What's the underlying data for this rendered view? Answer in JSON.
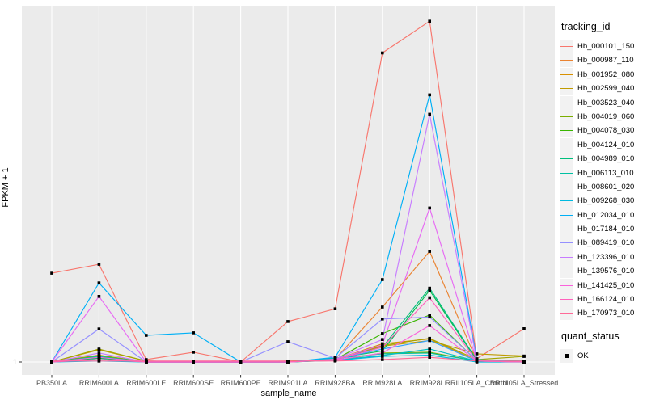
{
  "chart_data": {
    "type": "line",
    "xlabel": "sample_name",
    "ylabel": "FPKM + 1",
    "y_scale": "log10",
    "y_tick_labels": [
      "1"
    ],
    "legend_title": "tracking_id",
    "quant_legend": {
      "title": "quant_status",
      "items": [
        {
          "label": "OK",
          "shape": "square",
          "color": "#000000"
        }
      ]
    },
    "panel_bg": "#EBEBEB",
    "grid_color": "#FFFFFF",
    "tick_color": "#333333",
    "tick_label_color": "#4D4D4D",
    "point_color": "#000000",
    "categories": [
      "PB350LA",
      "RRIM600LA",
      "RRIM600LE",
      "RRIM600SE",
      "RRIM600PE",
      "RRIM901LA",
      "RRIM928BA",
      "RRIM928LA",
      "RRIM928LE",
      "RRII105LA_Control",
      "RRII105LA_Stressed"
    ],
    "series": [
      {
        "name": "Hb_000101_150",
        "color": "#F8766D",
        "values": [
          6.1,
          7.3,
          1.05,
          1.22,
          1.0,
          2.28,
          2.95,
          540,
          1030,
          1.07,
          1.97
        ]
      },
      {
        "name": "Hb_000987_110",
        "color": "#EA8331",
        "values": [
          1.0,
          1.1,
          1.0,
          1.0,
          1.0,
          1.0,
          1.06,
          3.06,
          9.5,
          1.02,
          1.0
        ]
      },
      {
        "name": "Hb_001952_080",
        "color": "#D89000",
        "values": [
          1.0,
          1.15,
          1.0,
          1.0,
          1.0,
          1.0,
          1.05,
          1.45,
          1.6,
          1.02,
          1.0
        ]
      },
      {
        "name": "Hb_002599_040",
        "color": "#C09B00",
        "values": [
          1.0,
          1.28,
          1.02,
          1.0,
          1.0,
          1.0,
          1.04,
          1.38,
          1.55,
          1.18,
          1.13
        ]
      },
      {
        "name": "Hb_003523_040",
        "color": "#A3A500",
        "values": [
          1.0,
          1.3,
          1.02,
          1.0,
          1.0,
          1.02,
          1.06,
          1.4,
          1.62,
          1.05,
          1.12
        ]
      },
      {
        "name": "Hb_004019_060",
        "color": "#7CAE00",
        "values": [
          1.0,
          1.14,
          1.0,
          1.0,
          1.0,
          1.0,
          1.03,
          1.2,
          1.22,
          1.02,
          1.0
        ]
      },
      {
        "name": "Hb_004078_030",
        "color": "#39B600",
        "values": [
          1.0,
          1.1,
          1.0,
          1.0,
          1.0,
          1.0,
          1.05,
          1.78,
          2.6,
          1.02,
          1.0
        ]
      },
      {
        "name": "Hb_004124_010",
        "color": "#00BB4E",
        "values": [
          1.0,
          1.08,
          1.0,
          1.0,
          1.0,
          1.0,
          1.08,
          1.25,
          4.3,
          1.03,
          1.0
        ]
      },
      {
        "name": "Hb_004989_010",
        "color": "#00BF7D",
        "values": [
          1.0,
          1.1,
          1.0,
          1.0,
          1.0,
          1.0,
          1.06,
          1.35,
          4.5,
          1.04,
          1.02
        ]
      },
      {
        "name": "Hb_006113_010",
        "color": "#00C1A3",
        "values": [
          1.0,
          1.12,
          1.0,
          1.0,
          1.0,
          1.0,
          1.08,
          1.18,
          1.2,
          1.02,
          1.02
        ]
      },
      {
        "name": "Hb_008601_020",
        "color": "#00BFC4",
        "values": [
          1.0,
          1.05,
          1.0,
          1.0,
          1.0,
          1.0,
          1.04,
          1.14,
          1.3,
          1.02,
          1.0
        ]
      },
      {
        "name": "Hb_009268_030",
        "color": "#00BAE0",
        "values": [
          1.0,
          1.02,
          1.0,
          1.0,
          1.0,
          1.0,
          1.03,
          1.12,
          1.15,
          1.0,
          1.0
        ]
      },
      {
        "name": "Hb_012034_010",
        "color": "#00B0F6",
        "values": [
          1.0,
          5.0,
          1.72,
          1.81,
          1.0,
          1.0,
          1.1,
          5.35,
          230,
          1.05,
          1.0
        ]
      },
      {
        "name": "Hb_017184_010",
        "color": "#35A2FF",
        "values": [
          1.0,
          1.05,
          1.0,
          1.0,
          1.0,
          1.0,
          1.05,
          1.3,
          1.55,
          1.02,
          1.0
        ]
      },
      {
        "name": "Hb_089419_010",
        "color": "#9590FF",
        "values": [
          1.0,
          1.96,
          1.0,
          1.0,
          1.0,
          1.51,
          1.08,
          2.4,
          2.5,
          1.03,
          1.0
        ]
      },
      {
        "name": "Hb_123396_010",
        "color": "#C77CFF",
        "values": [
          1.0,
          1.2,
          1.0,
          1.0,
          1.0,
          1.0,
          1.06,
          1.58,
          155,
          1.02,
          1.0
        ]
      },
      {
        "name": "Hb_139576_010",
        "color": "#E76BF3",
        "values": [
          1.0,
          3.8,
          1.0,
          1.0,
          1.0,
          1.0,
          1.05,
          1.42,
          23,
          1.02,
          1.0
        ]
      },
      {
        "name": "Hb_141425_010",
        "color": "#FA62DB",
        "values": [
          1.0,
          1.1,
          1.0,
          1.0,
          1.0,
          1.0,
          1.04,
          1.2,
          2.1,
          1.02,
          1.0
        ]
      },
      {
        "name": "Hb_166124_010",
        "color": "#FF62BC",
        "values": [
          1.0,
          1.05,
          1.0,
          1.0,
          1.0,
          1.0,
          1.05,
          1.35,
          3.7,
          1.02,
          1.0
        ]
      },
      {
        "name": "Hb_170973_010",
        "color": "#FF6A98",
        "values": [
          1.02,
          1.02,
          1.02,
          1.02,
          1.02,
          1.02,
          1.02,
          1.05,
          1.1,
          1.02,
          1.02
        ]
      }
    ]
  }
}
